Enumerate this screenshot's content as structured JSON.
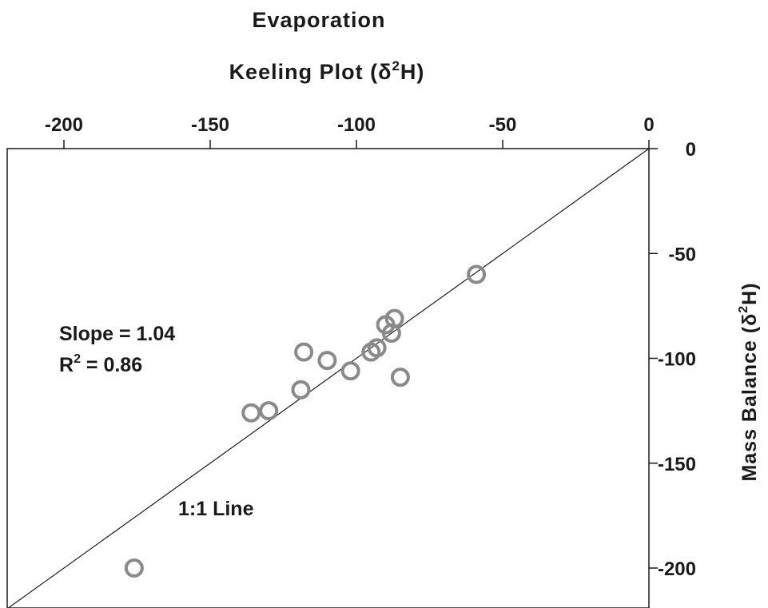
{
  "chart_data": {
    "type": "scatter",
    "title": "Evaporation",
    "xlabel_prefix": "Keeling Plot (δ",
    "xlabel_sup": "2",
    "xlabel_suffix": "H)",
    "ylabel_prefix": "Mass Balance (δ",
    "ylabel_sup": "2",
    "ylabel_suffix": "H)",
    "xlim": [
      -220,
      0
    ],
    "ylim": [
      -220,
      0
    ],
    "x_ticks": [
      -200,
      -150,
      -100,
      -50,
      0
    ],
    "y_ticks": [
      0,
      -50,
      -100,
      -150,
      -200
    ],
    "x_axis_position": "top",
    "y_axis_position": "right",
    "grid": false,
    "points": [
      {
        "x": -59,
        "y": -60
      },
      {
        "x": -87,
        "y": -81
      },
      {
        "x": -90,
        "y": -84
      },
      {
        "x": -88,
        "y": -88
      },
      {
        "x": -93,
        "y": -95
      },
      {
        "x": -95,
        "y": -97
      },
      {
        "x": -85,
        "y": -109
      },
      {
        "x": -102,
        "y": -106
      },
      {
        "x": -110,
        "y": -101
      },
      {
        "x": -118,
        "y": -97
      },
      {
        "x": -119,
        "y": -115
      },
      {
        "x": -130,
        "y": -125
      },
      {
        "x": -136,
        "y": -126
      },
      {
        "x": -176,
        "y": -200
      }
    ],
    "reference_line": {
      "label": "1:1 Line",
      "slope": 1,
      "intercept": 0
    },
    "stats": {
      "slope_label": "Slope = 1.04",
      "r2_prefix": "R",
      "r2_sup": "2",
      "r2_value": " = 0.86"
    }
  }
}
